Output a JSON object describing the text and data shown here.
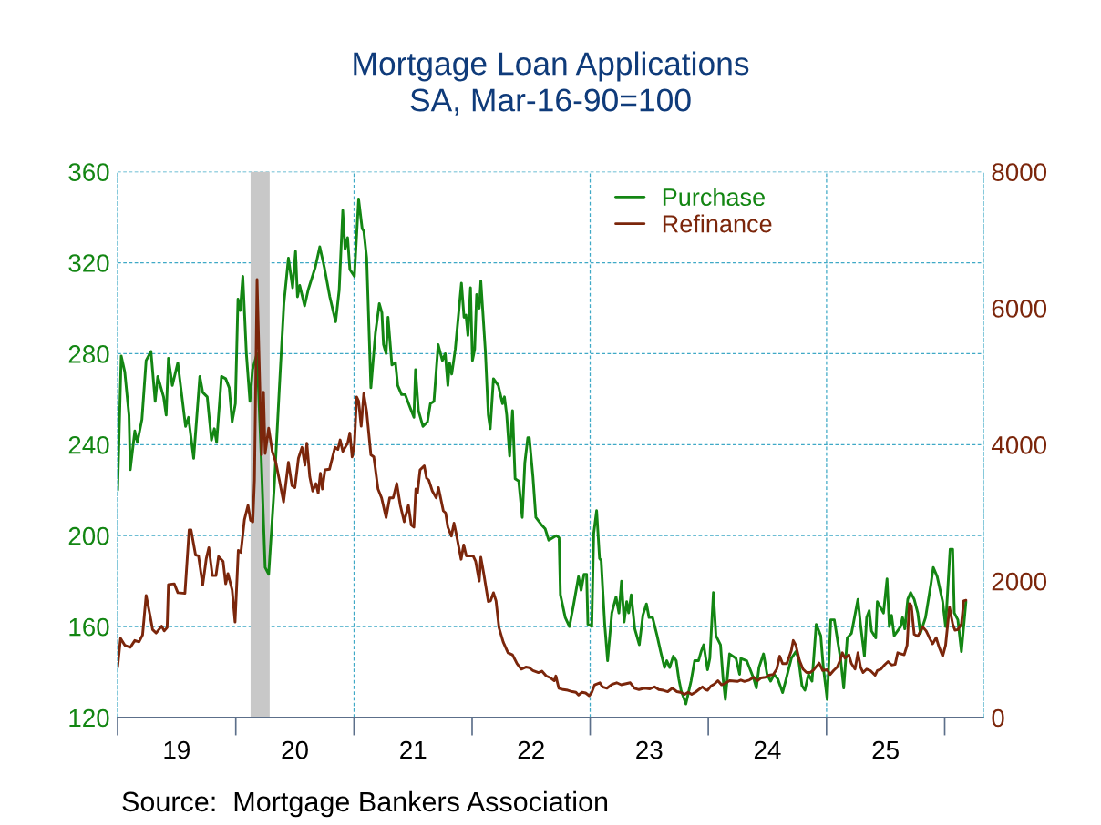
{
  "chart_data": {
    "type": "line",
    "title": "Mortgage Loan Applications",
    "subtitle": "SA, Mar-16-90=100",
    "annotations": [
      "Source:  Mortgage Bankers Association"
    ],
    "xlim": [
      "2019-01-01",
      "2026-05-01"
    ],
    "xticks": [
      {
        "value": "2019-07-02T12:00",
        "label": "19"
      },
      {
        "value": "2020-07-02",
        "label": "20"
      },
      {
        "value": "2021-07-02T12:00",
        "label": "21"
      },
      {
        "value": "2022-07-02T12:00",
        "label": "22"
      },
      {
        "value": "2023-07-02T12:00",
        "label": "23"
      },
      {
        "value": "2024-07-02",
        "label": "24"
      },
      {
        "value": "2025-07-02T12:00",
        "label": "25"
      }
    ],
    "ylim": [
      120,
      360
    ],
    "yticks": [
      120,
      160,
      200,
      240,
      280,
      320,
      360
    ],
    "y2lim": [
      0,
      8000
    ],
    "y2ticks": [
      0,
      2000,
      4000,
      6000,
      8000
    ],
    "grid": "y",
    "legend": "top right",
    "ref_lines": [
      {
        "axis": "x",
        "value": "2021-01-01",
        "color": "#3fa9c6",
        "line_style": "dashed"
      },
      {
        "axis": "x",
        "value": "2023-01-01",
        "color": "#3fa9c6",
        "line_style": "dashed"
      },
      {
        "axis": "x",
        "value": "2025-01-01",
        "color": "#3fa9c6",
        "line_style": "dashed"
      }
    ],
    "bands": [
      {
        "axis": "x",
        "from": "2020-02-16",
        "to": "2020-04-15",
        "color": "#c8c8c8"
      }
    ],
    "series": [
      {
        "name": "Purchase",
        "color": "#138613",
        "axis": "y",
        "x": [
          "2019-01-01",
          "2019-01-12",
          "2019-01-23",
          "2019-02-05",
          "2019-02-09",
          "2019-02-23",
          "2019-03-03",
          "2019-03-17",
          "2019-03-30",
          "2019-04-14",
          "2019-04-27",
          "2019-05-05",
          "2019-05-23",
          "2019-05-31",
          "2019-06-07",
          "2019-06-19",
          "2019-07-06",
          "2019-07-30",
          "2019-08-08",
          "2019-08-24",
          "2019-09-12",
          "2019-09-21",
          "2019-10-05",
          "2019-10-18",
          "2019-10-27",
          "2019-11-03",
          "2019-11-18",
          "2019-12-01",
          "2019-12-12",
          "2019-12-21",
          "2019-12-31",
          "2020-01-08",
          "2020-01-15",
          "2020-01-23",
          "2020-02-03",
          "2020-02-14",
          "2020-02-22",
          "2020-03-07",
          "2020-03-20",
          "2020-04-01",
          "2020-04-12",
          "2020-04-29",
          "2020-05-15",
          "2020-05-29",
          "2020-06-12",
          "2020-06-25",
          "2020-07-04",
          "2020-07-10",
          "2020-07-17",
          "2020-08-01",
          "2020-08-12",
          "2020-09-03",
          "2020-09-17",
          "2020-10-01",
          "2020-10-18",
          "2020-11-05",
          "2020-11-16",
          "2020-11-27",
          "2020-12-04",
          "2020-12-12",
          "2020-12-19",
          "2021-01-02",
          "2021-01-15",
          "2021-01-26",
          "2021-01-31",
          "2021-02-09",
          "2021-02-22",
          "2021-03-08",
          "2021-03-20",
          "2021-03-28",
          "2021-04-02",
          "2021-04-10",
          "2021-04-16",
          "2021-04-28",
          "2021-05-09",
          "2021-05-16",
          "2021-05-28",
          "2021-06-08",
          "2021-06-24",
          "2021-07-05",
          "2021-07-10",
          "2021-07-19",
          "2021-08-02",
          "2021-08-16",
          "2021-08-25",
          "2021-09-05",
          "2021-09-18",
          "2021-10-01",
          "2021-10-10",
          "2021-10-18",
          "2021-10-23",
          "2021-10-30",
          "2021-11-10",
          "2021-11-29",
          "2021-12-07",
          "2021-12-13",
          "2021-12-19",
          "2021-12-27",
          "2022-01-02",
          "2022-01-09",
          "2022-01-15",
          "2022-01-23",
          "2022-01-28",
          "2022-02-11",
          "2022-02-20",
          "2022-02-26",
          "2022-03-08",
          "2022-03-23",
          "2022-04-05",
          "2022-04-11",
          "2022-04-18",
          "2022-04-27",
          "2022-05-06",
          "2022-05-14",
          "2022-05-25",
          "2022-06-05",
          "2022-06-13",
          "2022-06-22",
          "2022-06-27",
          "2022-07-08",
          "2022-07-17",
          "2022-08-02",
          "2022-08-15",
          "2022-08-26",
          "2022-09-18",
          "2022-09-27",
          "2022-10-01",
          "2022-10-16",
          "2022-10-29",
          "2022-11-10",
          "2022-11-26",
          "2022-12-04",
          "2022-12-13",
          "2022-12-21",
          "2022-12-25",
          "2023-01-06",
          "2023-01-12",
          "2023-01-21",
          "2023-01-30",
          "2023-02-04",
          "2023-02-15",
          "2023-02-24",
          "2023-03-09",
          "2023-03-22",
          "2023-03-31",
          "2023-04-08",
          "2023-04-16",
          "2023-04-24",
          "2023-04-30",
          "2023-05-08",
          "2023-05-19",
          "2023-06-02",
          "2023-06-13",
          "2023-06-24",
          "2023-07-02",
          "2023-07-13",
          "2023-07-27",
          "2023-08-07",
          "2023-08-19",
          "2023-08-26",
          "2023-09-04",
          "2023-09-15",
          "2023-09-24",
          "2023-10-02",
          "2023-10-09",
          "2023-10-24",
          "2023-11-09",
          "2023-11-20",
          "2023-12-02",
          "2023-12-10",
          "2023-12-18",
          "2023-12-30",
          "2024-01-06",
          "2024-01-17",
          "2024-01-25",
          "2024-02-08",
          "2024-02-16",
          "2024-02-23",
          "2024-03-07",
          "2024-03-27",
          "2024-04-07",
          "2024-04-11",
          "2024-04-29",
          "2024-05-10",
          "2024-05-21",
          "2024-05-29",
          "2024-06-06",
          "2024-06-20",
          "2024-07-01",
          "2024-07-12",
          "2024-07-23",
          "2024-08-03",
          "2024-08-18",
          "2024-08-29",
          "2024-09-14",
          "2024-09-28",
          "2024-10-06",
          "2024-10-17",
          "2024-10-26",
          "2024-11-06",
          "2024-11-17",
          "2024-11-30",
          "2024-12-14",
          "2024-12-22",
          "2025-01-03",
          "2025-01-14",
          "2025-01-25",
          "2025-02-05",
          "2025-02-14",
          "2025-02-23",
          "2025-03-06",
          "2025-03-19",
          "2025-04-08",
          "2025-04-16",
          "2025-04-28",
          "2025-05-05",
          "2025-05-13",
          "2025-05-20",
          "2025-06-02",
          "2025-06-07",
          "2025-06-26",
          "2025-07-07",
          "2025-07-14",
          "2025-07-21",
          "2025-07-29",
          "2025-08-18",
          "2025-08-24",
          "2025-08-31",
          "2025-09-09",
          "2025-09-18",
          "2025-09-29",
          "2025-10-10",
          "2025-10-18",
          "2025-11-03",
          "2025-11-20",
          "2025-11-27",
          "2025-12-09",
          "2025-12-26",
          "2026-01-04",
          "2026-01-11",
          "2026-01-18",
          "2026-01-26",
          "2026-01-31",
          "2026-02-11",
          "2026-02-22",
          "2026-03-08"
        ],
        "values": [
          220,
          279,
          272,
          253,
          229,
          246,
          241,
          251,
          277,
          281,
          259,
          270,
          261,
          253,
          278,
          266,
          276,
          248,
          252,
          234,
          270,
          263,
          261,
          242,
          247,
          241,
          270,
          269,
          265,
          250,
          258,
          304,
          299,
          314,
          280,
          259,
          273,
          280,
          234,
          186,
          183,
          221,
          265,
          302,
          322,
          309,
          325,
          305,
          310,
          301,
          308,
          318,
          327,
          318,
          305,
          294,
          308,
          343,
          326,
          331,
          317,
          314,
          348,
          335,
          334,
          322,
          265,
          289,
          302,
          298,
          284,
          280,
          296,
          275,
          276,
          266,
          262,
          262,
          256,
          252,
          273,
          255,
          248,
          250,
          258,
          259,
          284,
          277,
          280,
          266,
          276,
          271,
          282,
          311,
          296,
          297,
          288,
          309,
          277,
          282,
          306,
          300,
          312,
          281,
          253,
          247,
          269,
          266,
          258,
          261,
          253,
          235,
          255,
          225,
          224,
          208,
          232,
          243,
          243,
          226,
          208,
          205,
          203,
          198,
          200,
          199,
          174,
          164,
          160,
          169,
          182,
          176,
          183,
          183,
          161,
          160,
          201,
          211,
          190,
          189,
          161,
          145,
          166,
          173,
          166,
          180,
          162,
          171,
          166,
          174,
          159,
          152,
          165,
          170,
          164,
          164,
          156,
          149,
          142,
          145,
          142,
          147,
          145,
          137,
          132,
          126,
          136,
          145,
          145,
          149,
          152,
          141,
          146,
          175,
          156,
          152,
          137,
          128,
          148,
          146,
          139,
          146,
          145,
          141,
          137,
          133,
          142,
          148,
          139,
          136,
          139,
          137,
          131,
          137,
          146,
          149,
          146,
          134,
          132,
          139,
          136,
          161,
          156,
          142,
          128,
          163,
          163,
          153,
          145,
          133,
          155,
          157,
          172,
          161,
          147,
          164,
          167,
          158,
          155,
          171,
          166,
          181,
          160,
          165,
          156,
          160,
          164,
          159,
          172,
          175,
          172,
          166,
          157,
          164,
          179,
          186,
          182,
          171,
          160,
          177,
          194,
          194,
          166,
          163,
          149,
          171
        ]
      },
      {
        "name": "Refinance",
        "color": "#7b260b",
        "axis": "y2",
        "x": [
          "2019-01-01",
          "2019-01-10",
          "2019-01-23",
          "2019-02-09",
          "2019-02-23",
          "2019-03-08",
          "2019-03-19",
          "2019-03-30",
          "2019-04-11",
          "2019-04-19",
          "2019-04-30",
          "2019-05-17",
          "2019-05-25",
          "2019-06-03",
          "2019-06-07",
          "2019-06-25",
          "2019-07-06",
          "2019-07-28",
          "2019-08-10",
          "2019-08-16",
          "2019-08-30",
          "2019-09-08",
          "2019-09-21",
          "2019-10-02",
          "2019-10-10",
          "2019-10-21",
          "2019-11-01",
          "2019-11-09",
          "2019-11-23",
          "2019-12-01",
          "2019-12-08",
          "2019-12-21",
          "2019-12-30",
          "2020-01-09",
          "2020-01-17",
          "2020-01-28",
          "2020-02-08",
          "2020-02-16",
          "2020-02-23",
          "2020-02-28",
          "2020-03-07",
          "2020-03-21",
          "2020-03-27",
          "2020-04-01",
          "2020-04-12",
          "2020-04-23",
          "2020-05-04",
          "2020-05-15",
          "2020-05-28",
          "2020-06-12",
          "2020-06-23",
          "2020-07-02",
          "2020-07-13",
          "2020-07-24",
          "2020-08-02",
          "2020-08-08",
          "2020-08-17",
          "2020-08-26",
          "2020-09-05",
          "2020-09-12",
          "2020-09-19",
          "2020-09-25",
          "2020-10-03",
          "2020-10-17",
          "2020-11-03",
          "2020-11-12",
          "2020-11-19",
          "2020-11-27",
          "2020-12-12",
          "2020-12-19",
          "2020-12-26",
          "2021-01-02",
          "2021-01-09",
          "2021-01-15",
          "2021-01-23",
          "2021-01-31",
          "2021-02-09",
          "2021-02-22",
          "2021-03-03",
          "2021-03-16",
          "2021-03-27",
          "2021-04-10",
          "2021-04-21",
          "2021-05-02",
          "2021-05-13",
          "2021-05-24",
          "2021-06-05",
          "2021-06-18",
          "2021-06-27",
          "2021-07-05",
          "2021-07-11",
          "2021-07-16",
          "2021-07-24",
          "2021-08-06",
          "2021-08-13",
          "2021-08-20",
          "2021-08-31",
          "2021-09-12",
          "2021-09-19",
          "2021-10-04",
          "2021-10-11",
          "2021-10-18",
          "2021-10-29",
          "2021-11-06",
          "2021-11-13",
          "2021-11-28",
          "2021-12-06",
          "2021-12-14",
          "2022-01-04",
          "2022-01-12",
          "2022-01-23",
          "2022-01-28",
          "2022-02-06",
          "2022-02-20",
          "2022-02-27",
          "2022-03-08",
          "2022-03-16",
          "2022-03-25",
          "2022-04-07",
          "2022-04-22",
          "2022-05-06",
          "2022-05-20",
          "2022-06-02",
          "2022-06-16",
          "2022-06-27",
          "2022-07-08",
          "2022-07-25",
          "2022-08-05",
          "2022-08-18",
          "2022-09-01",
          "2022-09-12",
          "2022-09-17",
          "2022-09-26",
          "2022-10-10",
          "2022-10-24",
          "2022-11-07",
          "2022-11-18",
          "2022-11-26",
          "2022-12-07",
          "2022-12-18",
          "2022-12-29",
          "2023-01-06",
          "2023-01-15",
          "2023-01-31",
          "2023-02-08",
          "2023-02-22",
          "2023-03-11",
          "2023-03-24",
          "2023-04-07",
          "2023-05-05",
          "2023-05-18",
          "2023-06-01",
          "2023-06-18",
          "2023-07-05",
          "2023-07-19",
          "2023-08-01",
          "2023-08-15",
          "2023-08-29",
          "2023-09-12",
          "2023-09-26",
          "2023-10-07",
          "2023-10-20",
          "2023-10-31",
          "2023-11-11",
          "2023-11-22",
          "2023-12-03",
          "2023-12-14",
          "2023-12-23",
          "2023-12-30",
          "2024-01-09",
          "2024-01-20",
          "2024-01-31",
          "2024-02-11",
          "2024-02-22",
          "2024-03-07",
          "2024-03-31",
          "2024-04-11",
          "2024-04-22",
          "2024-05-07",
          "2024-05-21",
          "2024-06-01",
          "2024-06-12",
          "2024-06-26",
          "2024-07-07",
          "2024-07-20",
          "2024-07-31",
          "2024-08-09",
          "2024-08-18",
          "2024-08-31",
          "2024-09-14",
          "2024-09-20",
          "2024-09-28",
          "2024-10-09",
          "2024-10-20",
          "2024-10-31",
          "2024-11-11",
          "2024-11-22",
          "2024-12-09",
          "2024-12-20",
          "2025-01-03",
          "2025-01-12",
          "2025-01-23",
          "2025-02-03",
          "2025-02-12",
          "2025-02-19",
          "2025-02-27",
          "2025-03-11",
          "2025-03-19",
          "2025-03-30",
          "2025-04-08",
          "2025-04-16",
          "2025-04-24",
          "2025-05-05",
          "2025-05-16",
          "2025-05-31",
          "2025-06-07",
          "2025-06-18",
          "2025-06-29",
          "2025-07-10",
          "2025-07-21",
          "2025-08-01",
          "2025-08-09",
          "2025-08-29",
          "2025-09-07",
          "2025-09-14",
          "2025-09-20",
          "2025-09-29",
          "2025-10-10",
          "2025-10-25",
          "2025-11-05",
          "2025-11-16",
          "2025-11-25",
          "2025-12-06",
          "2025-12-15",
          "2025-12-26",
          "2026-01-04",
          "2026-01-16",
          "2026-01-26",
          "2026-02-02",
          "2026-02-11",
          "2026-02-22",
          "2026-03-01",
          "2026-03-08"
        ],
        "values": [
          740,
          1160,
          1060,
          1030,
          1130,
          1110,
          1210,
          1790,
          1500,
          1290,
          1240,
          1340,
          1270,
          1320,
          1950,
          1960,
          1830,
          1820,
          2750,
          2750,
          2380,
          2370,
          1940,
          2330,
          2490,
          2080,
          2080,
          2360,
          2290,
          1960,
          2110,
          1870,
          1400,
          2450,
          2420,
          2900,
          3110,
          2890,
          2870,
          3480,
          6420,
          3850,
          4770,
          3870,
          4240,
          3900,
          3740,
          3480,
          3160,
          3740,
          3400,
          3370,
          3800,
          3960,
          3700,
          4020,
          3530,
          3320,
          3430,
          3290,
          3580,
          3350,
          3630,
          3640,
          3960,
          3930,
          4070,
          3900,
          4020,
          4170,
          3820,
          4000,
          4700,
          4640,
          4270,
          4750,
          4480,
          3850,
          3820,
          3350,
          3220,
          2930,
          3220,
          3220,
          3430,
          3110,
          2870,
          3110,
          2820,
          2790,
          3350,
          3290,
          3630,
          3690,
          3510,
          3480,
          3320,
          3220,
          3370,
          3030,
          3000,
          2790,
          2660,
          2850,
          2690,
          2320,
          2530,
          2370,
          2370,
          2290,
          2000,
          2350,
          2110,
          1700,
          1710,
          1830,
          1710,
          1320,
          1110,
          950,
          920,
          790,
          710,
          740,
          730,
          690,
          660,
          680,
          610,
          580,
          540,
          610,
          430,
          410,
          400,
          380,
          370,
          330,
          370,
          360,
          320,
          370,
          480,
          510,
          450,
          430,
          490,
          510,
          480,
          510,
          430,
          410,
          430,
          420,
          450,
          410,
          400,
          380,
          430,
          380,
          370,
          340,
          370,
          340,
          370,
          410,
          450,
          410,
          400,
          460,
          490,
          540,
          480,
          500,
          540,
          530,
          550,
          530,
          550,
          590,
          540,
          580,
          590,
          620,
          630,
          710,
          900,
          790,
          790,
          980,
          1130,
          1060,
          840,
          710,
          660,
          660,
          700,
          800,
          690,
          700,
          630,
          690,
          740,
          840,
          950,
          870,
          920,
          790,
          710,
          950,
          740,
          660,
          710,
          690,
          620,
          690,
          710,
          770,
          820,
          770,
          780,
          950,
          920,
          1060,
          1670,
          1640,
          1220,
          1190,
          1330,
          1270,
          1160,
          1080,
          1170,
          1030,
          900,
          1060,
          1620,
          1370,
          1280,
          1290,
          1370,
          1710,
          1720
        ]
      }
    ]
  }
}
